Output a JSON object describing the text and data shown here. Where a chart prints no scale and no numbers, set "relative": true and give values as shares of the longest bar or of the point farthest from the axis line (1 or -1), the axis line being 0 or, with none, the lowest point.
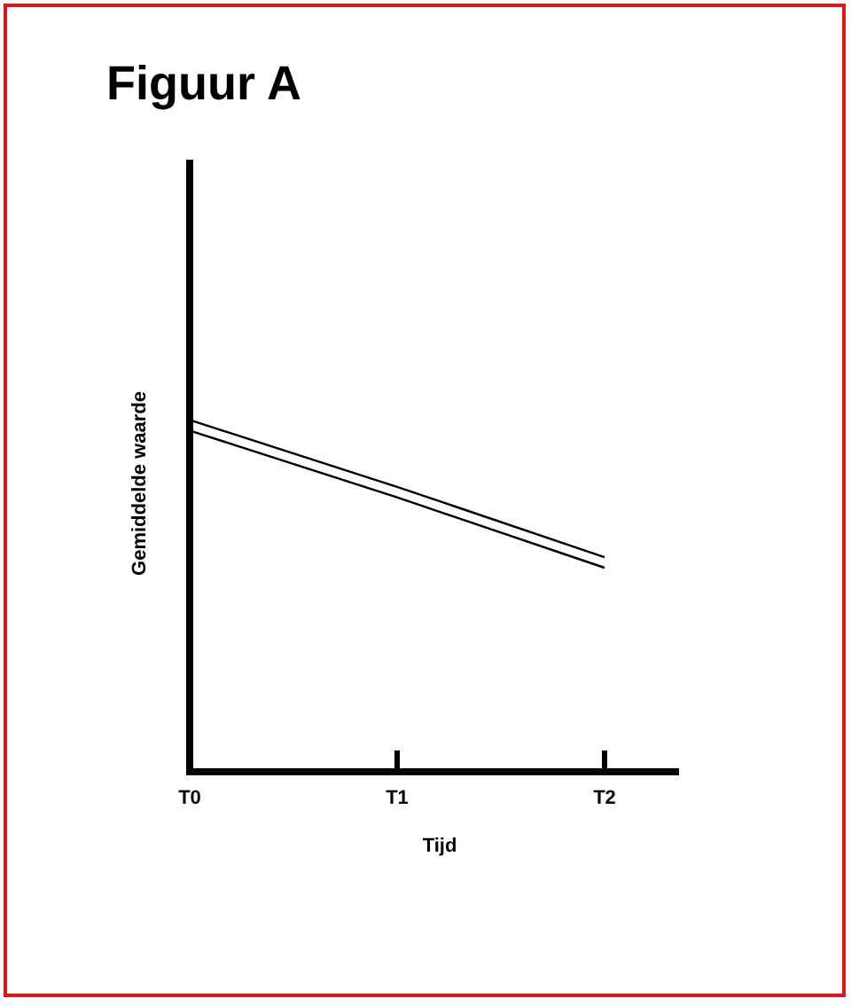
{
  "chart_data": {
    "type": "line",
    "title": "Figuur A",
    "xlabel": "Tijd",
    "ylabel": "Gemiddelde waarde",
    "relative": true,
    "line_style": "solid",
    "categories": [
      "T0",
      "T1",
      "T2"
    ],
    "series": [
      {
        "color": "#000000",
        "values": [
          1,
          0.81,
          0.61
        ]
      },
      {
        "color": "#000000",
        "values": [
          0.97,
          0.78,
          0.58
        ]
      }
    ]
  }
}
